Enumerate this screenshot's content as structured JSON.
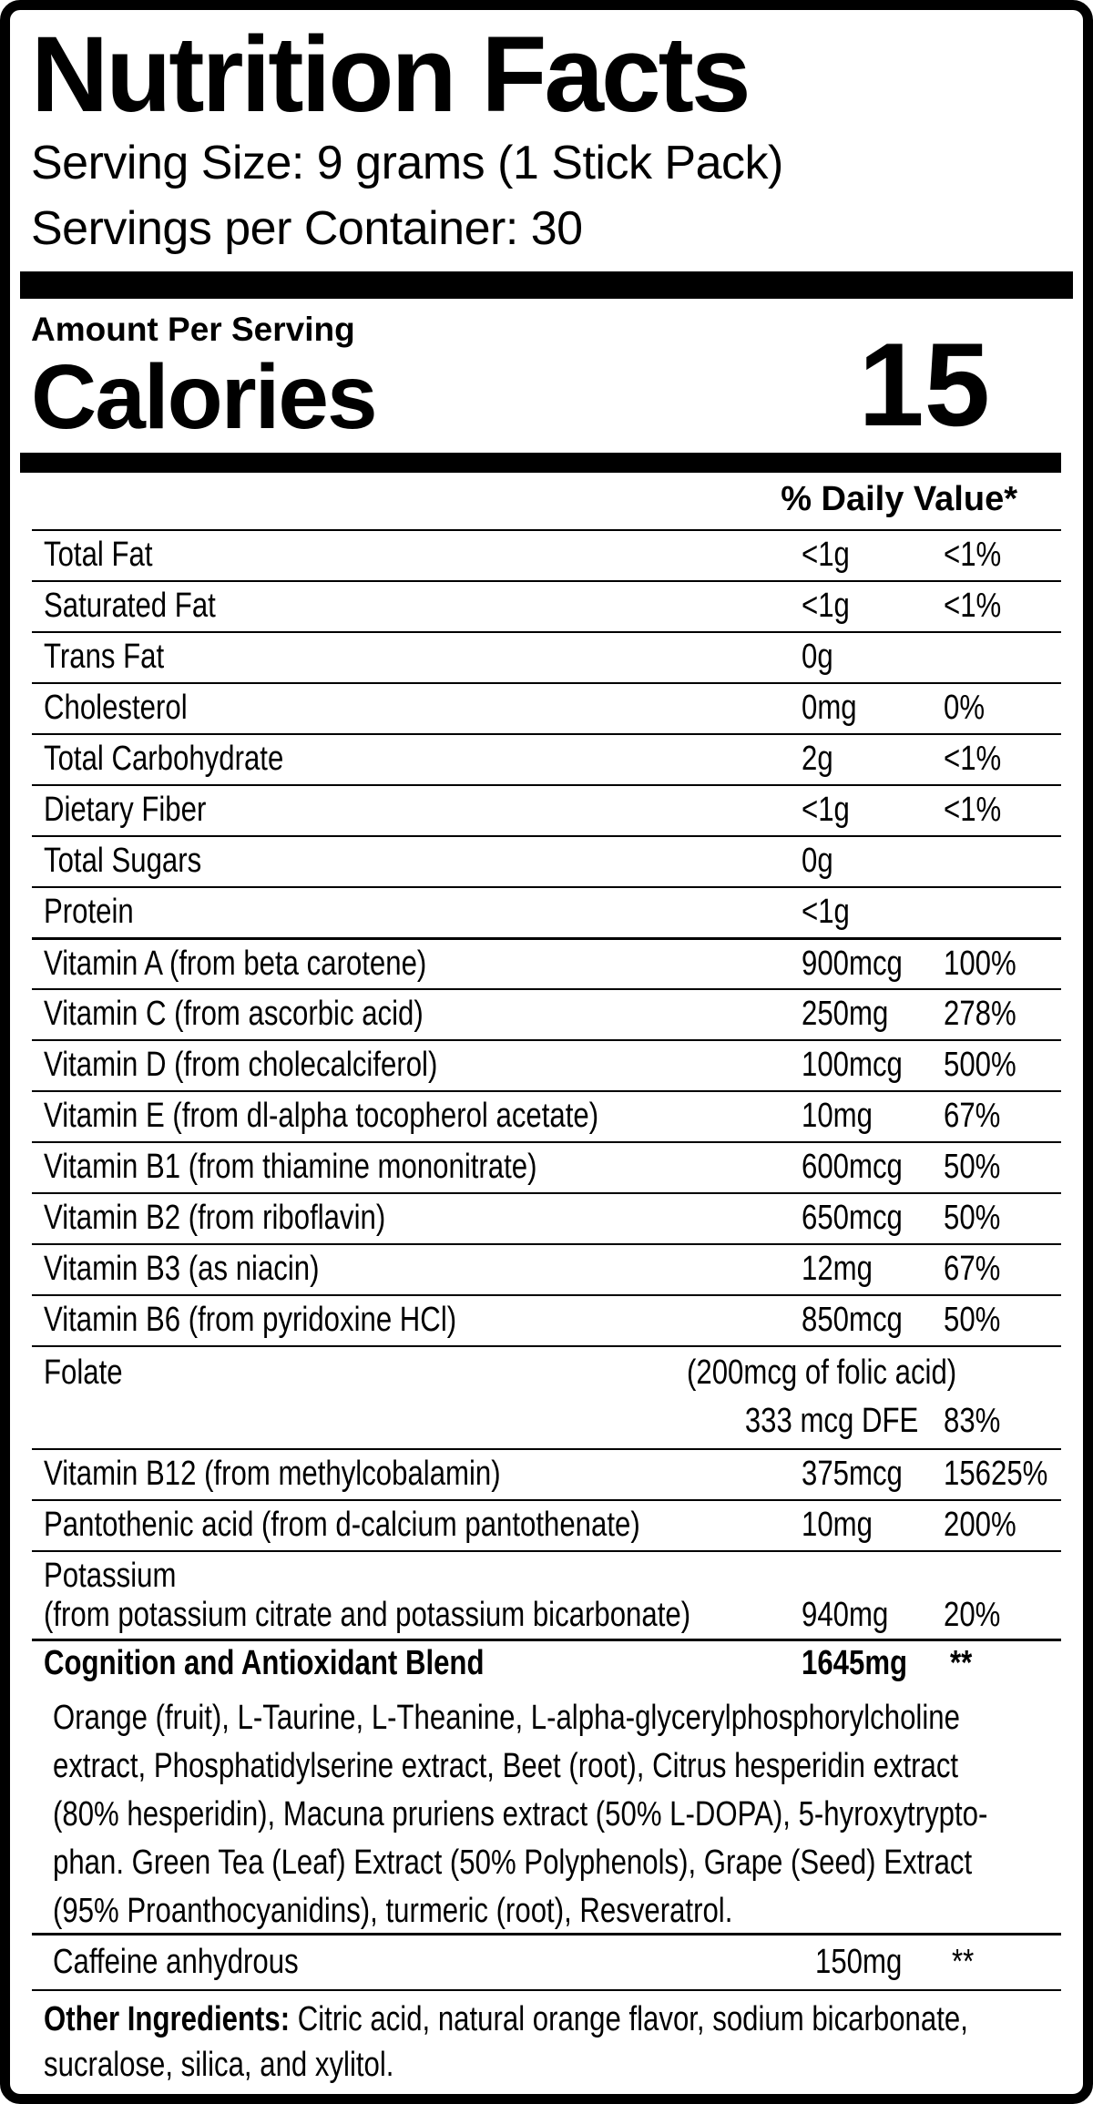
{
  "header": {
    "title": "Nutrition Facts",
    "serving_size": "Serving Size: 9 grams (1 Stick Pack)",
    "servings_per_container": "Servings per Container: 30"
  },
  "calories": {
    "section_label": "Amount Per Serving",
    "label": "Calories",
    "value": "15"
  },
  "daily_value_header": "% Daily Value*",
  "rows": [
    {
      "name": "Total Fat",
      "amount": "<1g",
      "dv": "<1%"
    },
    {
      "name": "Saturated Fat",
      "amount": "<1g",
      "dv": "<1%"
    },
    {
      "name": "Trans Fat",
      "amount": "0g",
      "dv": ""
    },
    {
      "name": "Cholesterol",
      "amount": "0mg",
      "dv": "0%"
    },
    {
      "name": "Total Carbohydrate",
      "amount": "2g",
      "dv": "<1%"
    },
    {
      "name": "Dietary Fiber",
      "amount": "<1g",
      "dv": "<1%"
    },
    {
      "name": "Total Sugars",
      "amount": "0g",
      "dv": ""
    },
    {
      "name": "Protein",
      "amount": "<1g",
      "dv": ""
    },
    {
      "name": "Vitamin A (from beta carotene)",
      "amount": "900mcg",
      "dv": "100%"
    },
    {
      "name": "Vitamin C (from ascorbic acid)",
      "amount": "250mg",
      "dv": "278%"
    },
    {
      "name": "Vitamin D (from cholecalciferol)",
      "amount": "100mcg",
      "dv": "500%"
    },
    {
      "name": "Vitamin E (from dl-alpha tocopherol acetate)",
      "amount": "10mg",
      "dv": "67%"
    },
    {
      "name": "Vitamin B1 (from thiamine mononitrate)",
      "amount": "600mcg",
      "dv": "50%"
    },
    {
      "name": "Vitamin B2 (from riboflavin)",
      "amount": "650mcg",
      "dv": "50%"
    },
    {
      "name": "Vitamin B3 (as niacin)",
      "amount": "12mg",
      "dv": "67%"
    },
    {
      "name": "Vitamin B6 (from pyridoxine HCl)",
      "amount": "850mcg",
      "dv": "50%"
    }
  ],
  "folate": {
    "name": "Folate",
    "note": "(200mcg of folic acid)",
    "amount": "333 mcg DFE",
    "dv": "83%"
  },
  "rows2": [
    {
      "name": "Vitamin B12 (from methylcobalamin)",
      "amount": "375mcg",
      "dv": "15625%"
    },
    {
      "name": "Pantothenic acid (from d-calcium pantothenate)",
      "amount": "10mg",
      "dv": "200%"
    }
  ],
  "potassium": {
    "name": "Potassium",
    "source": "(from potassium citrate and potassium bicarbonate)",
    "amount": "940mg",
    "dv": "20%"
  },
  "blend": {
    "name": "Cognition and Antioxidant Blend",
    "amount": "1645mg",
    "dv": "**"
  },
  "blend_ingredients_lines": [
    "Orange (fruit), L-Taurine, L-Theanine, L-alpha-glycerylphosphorylcholine",
    "extract, Phosphatidylserine extract, Beet (root), Citrus hesperidin extract",
    "(80% hesperidin), Macuna pruriens extract (50% L-DOPA), 5-hyroxytrypto-",
    "phan. Green Tea (Leaf) Extract (50% Polyphenols), Grape (Seed) Extract",
    "(95% Proanthocyanidins), turmeric (root), Resveratrol."
  ],
  "caffeine": {
    "name": "Caffeine anhydrous",
    "amount": "150mg",
    "dv": "**"
  },
  "other_ingredients": {
    "label": "Other Ingredients:",
    "line1": " Citric acid, natural orange flavor, sodium bicarbonate,",
    "line2": "sucralose, silica, and xylitol."
  },
  "colors": {
    "foreground": "#000000",
    "background": "#ffffff"
  }
}
